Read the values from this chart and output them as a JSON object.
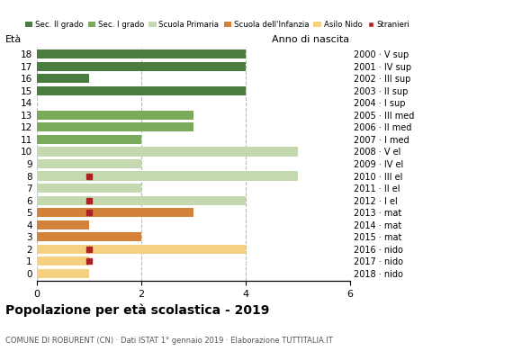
{
  "ages": [
    18,
    17,
    16,
    15,
    14,
    13,
    12,
    11,
    10,
    9,
    8,
    7,
    6,
    5,
    4,
    3,
    2,
    1,
    0
  ],
  "right_labels": [
    "2000 · V sup",
    "2001 · IV sup",
    "2002 · III sup",
    "2003 · II sup",
    "2004 · I sup",
    "2005 · III med",
    "2006 · II med",
    "2007 · I med",
    "2008 · V el",
    "2009 · IV el",
    "2010 · III el",
    "2011 · II el",
    "2012 · I el",
    "2013 · mat",
    "2014 · mat",
    "2015 · mat",
    "2016 · nido",
    "2017 · nido",
    "2018 · nido"
  ],
  "bar_values": [
    4,
    4,
    1,
    4,
    0,
    3,
    3,
    2,
    5,
    2,
    5,
    2,
    4,
    3,
    1,
    2,
    4,
    1,
    1
  ],
  "stranieri_x": [
    null,
    null,
    null,
    null,
    null,
    null,
    null,
    null,
    null,
    null,
    1.0,
    null,
    1.0,
    1.0,
    null,
    null,
    1.0,
    1.0,
    null
  ],
  "categories": [
    "Sec. II grado",
    "Sec. I grado",
    "Scuola Primaria",
    "Scuola dell'Infanzia",
    "Asilo Nido"
  ],
  "cat_colors": [
    "#4a7c3f",
    "#7aaa5a",
    "#c5d9b0",
    "#d4813a",
    "#f5d080"
  ],
  "age_to_cat": {
    "18": "Sec. II grado",
    "17": "Sec. II grado",
    "16": "Sec. II grado",
    "15": "Sec. II grado",
    "14": "Sec. II grado",
    "13": "Sec. I grado",
    "12": "Sec. I grado",
    "11": "Sec. I grado",
    "10": "Scuola Primaria",
    "9": "Scuola Primaria",
    "8": "Scuola Primaria",
    "7": "Scuola Primaria",
    "6": "Scuola Primaria",
    "5": "Scuola dell'Infanzia",
    "4": "Scuola dell'Infanzia",
    "3": "Scuola dell'Infanzia",
    "2": "Asilo Nido",
    "1": "Asilo Nido",
    "0": "Asilo Nido"
  },
  "xlim": [
    0,
    6
  ],
  "xticks": [
    0,
    2,
    4,
    6
  ],
  "title": "Popolazione per età scolastica - 2019",
  "subtitle": "COMUNE DI ROBURENT (CN) · Dati ISTAT 1° gennaio 2019 · Elaborazione TUTTITALIA.IT",
  "ylabel_left": "Età",
  "ylabel_right": "Anno di nascita",
  "background_color": "#ffffff",
  "grid_color": "#bbbbbb",
  "stranieri_color": "#aa2222",
  "bar_height": 0.75
}
